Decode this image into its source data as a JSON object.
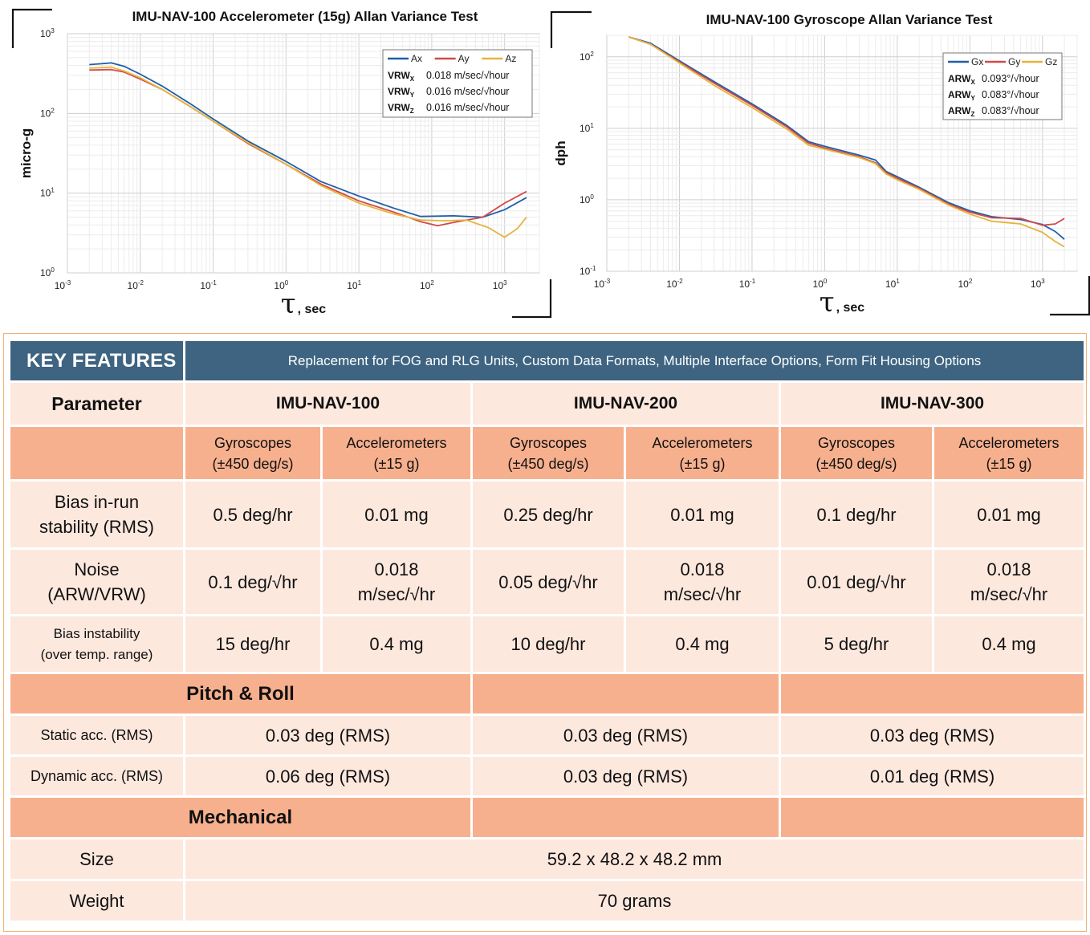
{
  "chart_data": [
    {
      "type": "line",
      "title": "IMU-NAV-100 Accelerometer (15g) Allan Variance Test",
      "xlabel": "τ , sec",
      "ylabel": "micro-g",
      "x_scale": "log",
      "y_scale": "log",
      "xlim": [
        0.001,
        3000
      ],
      "ylim": [
        1,
        1000
      ],
      "x_ticks": [
        "10-3",
        "10-2",
        "10-1",
        "100",
        "101",
        "102",
        "103"
      ],
      "y_ticks": [
        "100",
        "101",
        "102",
        "103"
      ],
      "grid": true,
      "legend_position": "top-right",
      "series": [
        {
          "name": "Ax",
          "color": "#1f5fa8",
          "points": [
            [
              0.002,
              410
            ],
            [
              0.004,
              430
            ],
            [
              0.006,
              390
            ],
            [
              0.01,
              310
            ],
            [
              0.02,
              220
            ],
            [
              0.05,
              130
            ],
            [
              0.1,
              85
            ],
            [
              0.3,
              45
            ],
            [
              1,
              25
            ],
            [
              3,
              14
            ],
            [
              10,
              9.2
            ],
            [
              30,
              6.5
            ],
            [
              70,
              5.1
            ],
            [
              200,
              5.2
            ],
            [
              500,
              5.0
            ],
            [
              1000,
              6.2
            ],
            [
              2000,
              8.8
            ]
          ]
        },
        {
          "name": "Ay",
          "color": "#d14a4a",
          "points": [
            [
              0.002,
              350
            ],
            [
              0.004,
              355
            ],
            [
              0.006,
              330
            ],
            [
              0.01,
              270
            ],
            [
              0.02,
              200
            ],
            [
              0.05,
              120
            ],
            [
              0.1,
              80
            ],
            [
              0.3,
              42
            ],
            [
              1,
              23
            ],
            [
              3,
              13
            ],
            [
              10,
              8.0
            ],
            [
              30,
              5.8
            ],
            [
              70,
              4.4
            ],
            [
              120,
              3.9
            ],
            [
              200,
              4.3
            ],
            [
              500,
              5.0
            ],
            [
              1000,
              7.5
            ],
            [
              2000,
              10.5
            ]
          ]
        },
        {
          "name": "Az",
          "color": "#e6b43c",
          "points": [
            [
              0.002,
              370
            ],
            [
              0.004,
              380
            ],
            [
              0.006,
              340
            ],
            [
              0.01,
              280
            ],
            [
              0.02,
              200
            ],
            [
              0.05,
              120
            ],
            [
              0.1,
              80
            ],
            [
              0.3,
              43
            ],
            [
              1,
              23
            ],
            [
              3,
              12.5
            ],
            [
              10,
              7.5
            ],
            [
              30,
              5.5
            ],
            [
              70,
              4.6
            ],
            [
              150,
              4.5
            ],
            [
              300,
              4.6
            ],
            [
              600,
              3.7
            ],
            [
              1000,
              2.8
            ],
            [
              1500,
              3.6
            ],
            [
              2000,
              5.0
            ]
          ]
        }
      ],
      "legend_entries": [
        {
          "label": "VRW",
          "sub": "X",
          "value": "0.018 m/sec/√hour"
        },
        {
          "label": "VRW",
          "sub": "Y",
          "value": "0.016 m/sec/√hour"
        },
        {
          "label": "VRW",
          "sub": "Z",
          "value": "0.016 m/sec/√hour"
        }
      ]
    },
    {
      "type": "line",
      "title": "IMU-NAV-100 Gyroscope Allan Variance Test",
      "xlabel": "τ , sec",
      "ylabel": "dph",
      "x_scale": "log",
      "y_scale": "log",
      "xlim": [
        0.001,
        3000
      ],
      "ylim": [
        0.1,
        200
      ],
      "x_ticks": [
        "10-3",
        "10-2",
        "10-1",
        "100",
        "101",
        "102",
        "103"
      ],
      "y_ticks": [
        "10-1",
        "100",
        "101",
        "102"
      ],
      "grid": true,
      "legend_position": "top-right",
      "series": [
        {
          "name": "Gx",
          "color": "#1f5fa8",
          "points": [
            [
              0.002,
              190
            ],
            [
              0.004,
              155
            ],
            [
              0.01,
              88
            ],
            [
              0.03,
              45
            ],
            [
              0.1,
              22
            ],
            [
              0.3,
              11
            ],
            [
              0.6,
              6.5
            ],
            [
              1,
              5.6
            ],
            [
              3,
              4.2
            ],
            [
              5,
              3.6
            ],
            [
              7,
              2.5
            ],
            [
              10,
              2.1
            ],
            [
              20,
              1.5
            ],
            [
              50,
              0.92
            ],
            [
              100,
              0.7
            ],
            [
              200,
              0.58
            ],
            [
              500,
              0.53
            ],
            [
              1000,
              0.45
            ],
            [
              1500,
              0.36
            ],
            [
              2000,
              0.28
            ]
          ]
        },
        {
          "name": "Gy",
          "color": "#d14a4a",
          "points": [
            [
              0.002,
              190
            ],
            [
              0.004,
              150
            ],
            [
              0.01,
              85
            ],
            [
              0.03,
              43
            ],
            [
              0.1,
              21
            ],
            [
              0.3,
              10.5
            ],
            [
              0.6,
              6.2
            ],
            [
              1,
              5.3
            ],
            [
              3,
              4.0
            ],
            [
              5,
              3.3
            ],
            [
              7,
              2.4
            ],
            [
              10,
              2.0
            ],
            [
              20,
              1.45
            ],
            [
              50,
              0.88
            ],
            [
              100,
              0.67
            ],
            [
              200,
              0.56
            ],
            [
              500,
              0.55
            ],
            [
              1000,
              0.44
            ],
            [
              1500,
              0.46
            ],
            [
              2000,
              0.55
            ]
          ]
        },
        {
          "name": "Gz",
          "color": "#e6b43c",
          "points": [
            [
              0.002,
              190
            ],
            [
              0.004,
              150
            ],
            [
              0.01,
              82
            ],
            [
              0.03,
              40
            ],
            [
              0.1,
              19.5
            ],
            [
              0.3,
              9.8
            ],
            [
              0.6,
              5.8
            ],
            [
              1,
              5.1
            ],
            [
              3,
              3.9
            ],
            [
              5,
              3.2
            ],
            [
              7,
              2.3
            ],
            [
              10,
              1.9
            ],
            [
              20,
              1.4
            ],
            [
              50,
              0.85
            ],
            [
              100,
              0.63
            ],
            [
              200,
              0.5
            ],
            [
              500,
              0.46
            ],
            [
              1000,
              0.35
            ],
            [
              1500,
              0.26
            ],
            [
              2000,
              0.22
            ]
          ]
        }
      ],
      "legend_entries": [
        {
          "label": "ARW",
          "sub": "X",
          "value": "0.093°/√hour"
        },
        {
          "label": "ARW",
          "sub": "Y",
          "value": "0.083°/√hour"
        },
        {
          "label": "ARW",
          "sub": "Z",
          "value": "0.083°/√hour"
        }
      ]
    }
  ],
  "table": {
    "key_features": "KEY FEATURES",
    "key_features_desc": "Replacement for FOG and RLG Units, Custom Data Formats, Multiple Interface Options, Form Fit Housing Options",
    "parameter_label": "Parameter",
    "models": [
      "IMU-NAV-100",
      "IMU-NAV-200",
      "IMU-NAV-300"
    ],
    "sub_headers": [
      {
        "name": "Gyroscopes",
        "range": "(±450 deg/s)"
      },
      {
        "name": "Accelerometers",
        "range": "(±15 g)"
      },
      {
        "name": "Gyroscopes",
        "range": "(±450 deg/s)"
      },
      {
        "name": "Accelerometers",
        "range": "(±15 g)"
      },
      {
        "name": "Gyroscopes",
        "range": "(±450 deg/s)"
      },
      {
        "name": "Accelerometers",
        "range": "(±15 g)"
      }
    ],
    "bias_in_run": {
      "label_1": "Bias in-run",
      "label_2": "stability (RMS)",
      "values": [
        "0.5 deg/hr",
        "0.01 mg",
        "0.25 deg/hr",
        "0.01 mg",
        "0.1 deg/hr",
        "0.01 mg"
      ]
    },
    "noise": {
      "label_1": "Noise",
      "label_2": "(ARW/VRW)",
      "values": [
        {
          "l1": "0.1 deg/√hr",
          "l2": ""
        },
        {
          "l1": "0.018",
          "l2": "m/sec/√hr"
        },
        {
          "l1": "0.05 deg/√hr",
          "l2": ""
        },
        {
          "l1": "0.018",
          "l2": "m/sec/√hr"
        },
        {
          "l1": "0.01 deg/√hr",
          "l2": ""
        },
        {
          "l1": "0.018",
          "l2": "m/sec/√hr"
        }
      ]
    },
    "bias_instability": {
      "label_1": "Bias instability",
      "label_2": "(over temp. range)",
      "values": [
        "15 deg/hr",
        "0.4 mg",
        "10 deg/hr",
        "0.4 mg",
        "5 deg/hr",
        "0.4 mg"
      ]
    },
    "pitch_roll": "Pitch & Roll",
    "static_acc": {
      "label": "Static acc. (RMS)",
      "values": [
        "0.03 deg (RMS)",
        "0.03 deg (RMS)",
        "0.03 deg (RMS)"
      ]
    },
    "dynamic_acc": {
      "label": "Dynamic acc. (RMS)",
      "values": [
        "0.06 deg (RMS)",
        "0.03 deg (RMS)",
        "0.01 deg (RMS)"
      ]
    },
    "mechanical": "Mechanical",
    "size": {
      "label": "Size",
      "value": "59.2 x 48.2 x 48.2 mm"
    },
    "weight": {
      "label": "Weight",
      "value": "70 grams"
    }
  }
}
